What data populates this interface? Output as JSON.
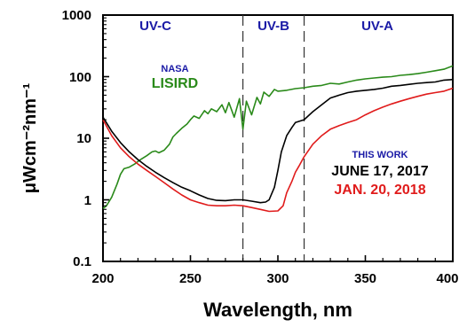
{
  "chart_data": {
    "type": "line",
    "xlabel": "Wavelength, nm",
    "ylabel": "μWcm⁻²nm⁻¹",
    "xlim": [
      200,
      400
    ],
    "ylim": [
      0.1,
      1000
    ],
    "y_scale": "log",
    "x_ticks": [
      "200",
      "250",
      "300",
      "350",
      "400"
    ],
    "y_ticks": [
      "0.1",
      "1",
      "10",
      "100",
      "1000"
    ],
    "grid": false,
    "bands": [
      {
        "label": "UV-C",
        "x": 230
      },
      {
        "label": "UV-B",
        "x": 297.5
      },
      {
        "label": "UV-A",
        "x": 357
      }
    ],
    "band_dividers": [
      280,
      315
    ],
    "annotations": {
      "nasa": "NASA",
      "lisird": "LISIRD",
      "this_work": "THIS WORK",
      "june": "JUNE 17, 2017",
      "jan": "JAN.  20, 2018"
    },
    "colors": {
      "lisird": "#2a8a1a",
      "june": "#000000",
      "jan": "#e01b1b",
      "bands": "#1a1aa6",
      "nasa": "#1a1aa6",
      "this_work": "#1a1aa6",
      "dividers": "#333333"
    },
    "series": [
      {
        "name": "LISIRD",
        "color": "#2a8a1a",
        "x": [
          200,
          202,
          205,
          208,
          210,
          212,
          215,
          218,
          220,
          222,
          225,
          228,
          230,
          232,
          235,
          238,
          240,
          242,
          245,
          248,
          250,
          252,
          255,
          258,
          260,
          262,
          265,
          268,
          270,
          272,
          275,
          278,
          280,
          282,
          285,
          288,
          290,
          292,
          295,
          298,
          300,
          305,
          310,
          315,
          320,
          325,
          330,
          335,
          340,
          345,
          350,
          355,
          360,
          365,
          370,
          375,
          380,
          385,
          390,
          395,
          400
        ],
        "y": [
          0.72,
          0.8,
          1.1,
          1.8,
          2.6,
          3.2,
          3.4,
          3.8,
          4.2,
          4.6,
          5.2,
          6.0,
          6.2,
          5.8,
          6.4,
          8.0,
          10.5,
          12.0,
          14.5,
          17.0,
          20.0,
          23.0,
          21.0,
          28.0,
          25.0,
          30.0,
          27.0,
          35.0,
          26.0,
          38.0,
          22.0,
          44.0,
          14.0,
          40.0,
          24.0,
          46.0,
          36.0,
          56.0,
          48.0,
          62.0,
          58.0,
          60.0,
          64.0,
          66.0,
          70.0,
          72.0,
          78.0,
          76.0,
          82.0,
          88.0,
          92.0,
          95.0,
          98.0,
          100.0,
          105.0,
          108.0,
          112.0,
          118.0,
          125.0,
          132.0,
          150.0
        ]
      },
      {
        "name": "JUNE 17, 2017",
        "color": "#000000",
        "x": [
          200,
          205,
          210,
          215,
          220,
          225,
          230,
          235,
          240,
          245,
          250,
          255,
          260,
          265,
          270,
          275,
          280,
          285,
          290,
          293,
          295,
          298,
          300,
          302,
          305,
          308,
          310,
          315,
          320,
          325,
          330,
          335,
          340,
          345,
          350,
          355,
          360,
          365,
          370,
          375,
          380,
          385,
          390,
          395,
          400
        ],
        "y": [
          22.0,
          13.0,
          8.5,
          6.0,
          4.5,
          3.5,
          2.8,
          2.3,
          1.9,
          1.6,
          1.4,
          1.2,
          1.05,
          0.98,
          0.97,
          1.0,
          1.0,
          0.95,
          0.9,
          0.92,
          1.0,
          1.6,
          3.0,
          6.0,
          11.0,
          15.0,
          18.0,
          20.0,
          27.0,
          35.0,
          45.0,
          50.0,
          55.0,
          58.0,
          60.0,
          62.0,
          65.0,
          70.0,
          72.0,
          75.0,
          78.0,
          80.0,
          82.0,
          88.0,
          90.0
        ]
      },
      {
        "name": "JAN.  20, 2018",
        "color": "#e01b1b",
        "x": [
          200,
          205,
          210,
          215,
          220,
          225,
          230,
          235,
          240,
          245,
          250,
          255,
          260,
          265,
          270,
          275,
          280,
          285,
          290,
          295,
          300,
          303,
          305,
          308,
          310,
          312,
          315,
          320,
          325,
          330,
          335,
          340,
          345,
          350,
          355,
          360,
          365,
          370,
          375,
          380,
          385,
          390,
          395,
          400
        ],
        "y": [
          20.0,
          11.0,
          7.0,
          5.0,
          3.8,
          3.0,
          2.4,
          1.9,
          1.5,
          1.2,
          1.0,
          0.9,
          0.82,
          0.8,
          0.8,
          0.82,
          0.8,
          0.75,
          0.7,
          0.65,
          0.66,
          0.8,
          1.3,
          2.0,
          2.8,
          3.5,
          5.0,
          8.0,
          11.0,
          14.0,
          16.0,
          18.0,
          20.0,
          24.0,
          28.0,
          32.0,
          36.0,
          40.0,
          44.0,
          48.0,
          52.0,
          55.0,
          58.0,
          65.0
        ]
      }
    ]
  }
}
